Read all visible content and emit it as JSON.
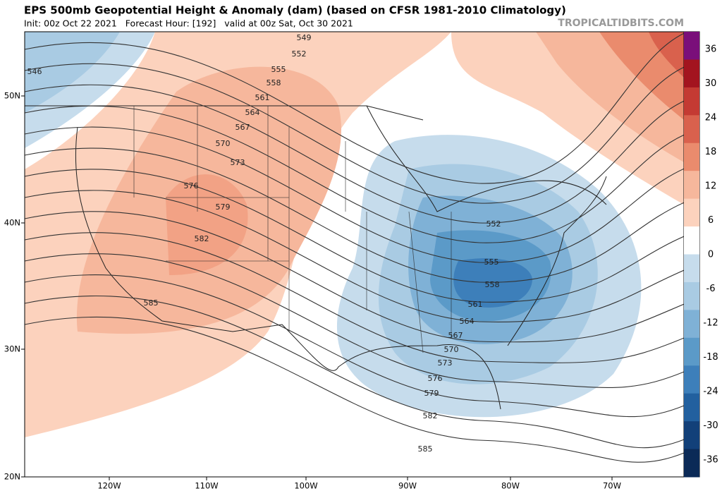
{
  "header": {
    "title": "EPS 500mb Geopotential Height & Anomaly (dam) (based on CFSR 1981-2010 Climatology)",
    "subtitle": "Init: 00z Oct 22 2021   Forecast Hour: [192]   valid at 00z Sat, Oct 30 2021",
    "watermark": "TROPICALTIDBITS.COM"
  },
  "map": {
    "lat_labels": [
      "50N",
      "40N",
      "30N",
      "20N"
    ],
    "lon_labels": [
      "120W",
      "110W",
      "100W",
      "90W",
      "80W",
      "70W"
    ],
    "contour_labels": [
      549,
      552,
      555,
      558,
      561,
      564,
      567,
      570,
      573,
      576,
      579,
      582,
      585,
      546,
      552,
      555,
      558,
      561,
      564,
      567,
      570,
      573,
      576,
      579,
      582,
      585
    ]
  },
  "colorbar": {
    "ticks": [
      36,
      30,
      24,
      18,
      12,
      6,
      0,
      -6,
      -12,
      -18,
      -24,
      -30,
      -36
    ]
  }
}
